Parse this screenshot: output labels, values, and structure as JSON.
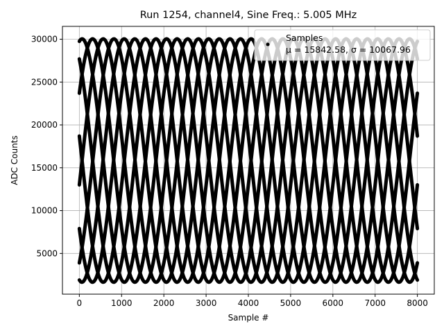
{
  "chart_data": {
    "type": "scatter",
    "title": "Run 1254, channel4, Sine Freq.: 5.005 MHz",
    "xlabel": "Sample #",
    "ylabel": "ADC Counts",
    "xlim": [
      -400,
      8400
    ],
    "ylim": [
      250,
      31500
    ],
    "xticks": [
      0,
      1000,
      2000,
      3000,
      4000,
      5000,
      6000,
      7000,
      8000
    ],
    "yticks": [
      5000,
      10000,
      15000,
      20000,
      25000,
      30000
    ],
    "grid": true,
    "legend_position": "top-right",
    "marker_color": "#000000",
    "series": [
      {
        "name": "Samples",
        "stat_label": "μ = 15842.58, σ = 10067.96",
        "model": "sinusoid",
        "offset": 15842.58,
        "amplitude": 14200,
        "period_samples": 2000,
        "sample_range": [
          0,
          8000
        ],
        "traces": [
          {
            "start": 29750,
            "initial": "rising",
            "points": [
              [
                0,
                29750
              ],
              [
                250,
                30042
              ],
              [
                1250,
                1642
              ],
              [
                2250,
                30042
              ],
              [
                3250,
                1642
              ],
              [
                4250,
                30042
              ],
              [
                5250,
                1642
              ],
              [
                6250,
                30042
              ],
              [
                7250,
                1642
              ],
              [
                8000,
                1890
              ]
            ]
          },
          {
            "start": 27700,
            "initial": "falling",
            "points": [
              [
                0,
                27700
              ],
              [
                750,
                1642
              ],
              [
                1750,
                30042
              ],
              [
                2750,
                1642
              ],
              [
                3750,
                30042
              ],
              [
                4750,
                1642
              ],
              [
                5750,
                30042
              ],
              [
                6750,
                1642
              ],
              [
                7750,
                30042
              ],
              [
                8000,
                29660
              ]
            ]
          },
          {
            "start": 23700,
            "initial": "rising",
            "points": [
              [
                0,
                23700
              ],
              [
                1000,
                30042
              ],
              [
                2000,
                1642
              ],
              [
                3000,
                30042
              ],
              [
                4000,
                1642
              ],
              [
                5000,
                30042
              ],
              [
                6000,
                1642
              ],
              [
                7000,
                30042
              ],
              [
                8000,
                23500
              ]
            ]
          },
          {
            "start": 18700,
            "initial": "falling",
            "points": [
              [
                0,
                18700
              ],
              [
                1000,
                1642
              ],
              [
                2000,
                30042
              ],
              [
                3000,
                1642
              ],
              [
                4000,
                30042
              ],
              [
                5000,
                1642
              ],
              [
                6000,
                30042
              ],
              [
                7000,
                1642
              ],
              [
                8000,
                18900
              ]
            ]
          },
          {
            "start": 13000,
            "initial": "rising",
            "points": [
              [
                0,
                13000
              ],
              [
                1000,
                30042
              ],
              [
                2000,
                1642
              ],
              [
                3000,
                30042
              ],
              [
                4000,
                1642
              ],
              [
                5000,
                30042
              ],
              [
                6000,
                1642
              ],
              [
                7000,
                30042
              ],
              [
                8000,
                12900
              ]
            ]
          },
          {
            "start": 7900,
            "initial": "falling",
            "points": [
              [
                0,
                7900
              ],
              [
                1000,
                1642
              ],
              [
                2000,
                30042
              ],
              [
                3000,
                1642
              ],
              [
                4000,
                30042
              ],
              [
                5000,
                1642
              ],
              [
                6000,
                30042
              ],
              [
                7000,
                1642
              ],
              [
                8000,
                8100
              ]
            ]
          },
          {
            "start": 3900,
            "initial": "rising",
            "points": [
              [
                0,
                3900
              ],
              [
                750,
                30042
              ],
              [
                1750,
                1642
              ],
              [
                2750,
                30042
              ],
              [
                3750,
                1642
              ],
              [
                4750,
                30042
              ],
              [
                5750,
                1642
              ],
              [
                6750,
                30042
              ],
              [
                7750,
                1642
              ],
              [
                8000,
                3800
              ]
            ]
          },
          {
            "start": 1900,
            "initial": "falling",
            "points": [
              [
                0,
                1900
              ],
              [
                250,
                1642
              ],
              [
                1250,
                30042
              ],
              [
                2250,
                1642
              ],
              [
                3250,
                30042
              ],
              [
                4250,
                1642
              ],
              [
                5250,
                30042
              ],
              [
                6250,
                1642
              ],
              [
                7250,
                30042
              ],
              [
                8000,
                27900
              ]
            ]
          }
        ]
      }
    ]
  }
}
